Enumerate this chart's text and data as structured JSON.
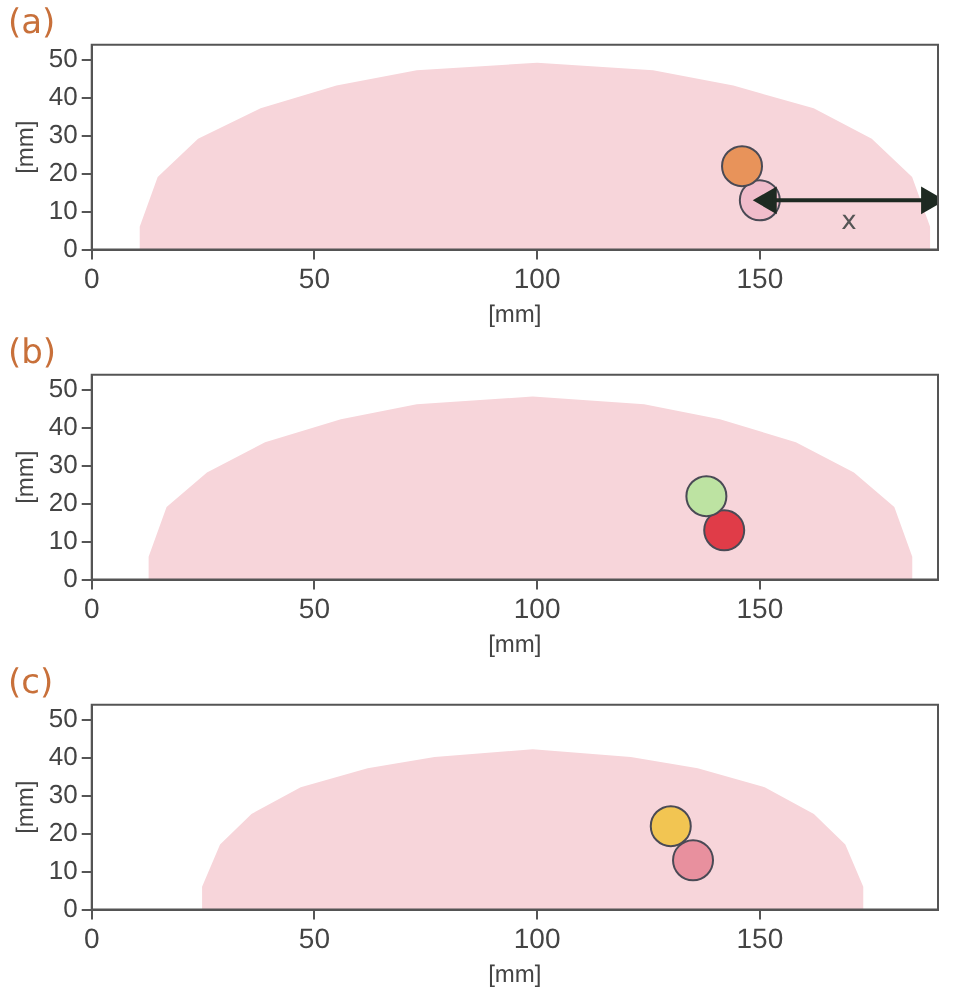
{
  "chart_data": [
    {
      "type": "scatter",
      "title": "(a)",
      "xlabel": "[mm]",
      "ylabel": "[mm]",
      "xlim": [
        0,
        190
      ],
      "xticks": [
        0,
        50,
        100,
        150
      ],
      "ylim": [
        0,
        54
      ],
      "yticks": [
        0,
        10,
        20,
        30,
        40,
        50
      ],
      "grid": false,
      "legend": false,
      "annotations": [
        "x"
      ],
      "series": [
        {
          "type": "area",
          "color": "#f7d5da",
          "x": [
            11,
            11,
            15,
            24,
            38,
            55,
            73,
            100,
            126,
            144,
            162,
            175,
            184,
            188,
            188
          ],
          "values": [
            0,
            6,
            19,
            29,
            37,
            43,
            47,
            49,
            47,
            43,
            37,
            29,
            19,
            6,
            0
          ]
        },
        {
          "type": "scatter",
          "marker": "circle",
          "color": "#e8935a",
          "x": [
            146
          ],
          "values": [
            22
          ]
        },
        {
          "type": "scatter",
          "marker": "circle",
          "color": "#f0bccb",
          "x": [
            150
          ],
          "values": [
            13
          ]
        },
        {
          "type": "line",
          "marker": "triangle",
          "color": "#1e2a22",
          "x": [
            152,
            188
          ],
          "values": [
            13,
            13
          ]
        }
      ]
    },
    {
      "type": "scatter",
      "title": "(b)",
      "xlabel": "[mm]",
      "ylabel": "[mm]",
      "xlim": [
        0,
        190
      ],
      "xticks": [
        0,
        50,
        100,
        150
      ],
      "ylim": [
        0,
        54
      ],
      "yticks": [
        0,
        10,
        20,
        30,
        40,
        50
      ],
      "grid": false,
      "legend": false,
      "series": [
        {
          "type": "area",
          "color": "#f7d5da",
          "x": [
            13,
            13,
            17,
            26,
            39,
            56,
            73,
            99,
            124,
            141,
            158,
            171,
            180,
            184,
            184
          ],
          "values": [
            0,
            6,
            19,
            28,
            36,
            42,
            46,
            48,
            46,
            42,
            36,
            28,
            19,
            6,
            0
          ]
        },
        {
          "type": "scatter",
          "marker": "circle",
          "color": "#bde3a2",
          "x": [
            138
          ],
          "values": [
            22
          ]
        },
        {
          "type": "scatter",
          "marker": "circle",
          "color": "#e03c48",
          "x": [
            142
          ],
          "values": [
            13
          ]
        }
      ]
    },
    {
      "type": "scatter",
      "title": "(c)",
      "xlabel": "[mm]",
      "ylabel": "[mm]",
      "xlim": [
        0,
        190
      ],
      "xticks": [
        0,
        50,
        100,
        150
      ],
      "ylim": [
        0,
        54
      ],
      "yticks": [
        0,
        10,
        20,
        30,
        40,
        50
      ],
      "grid": false,
      "legend": false,
      "series": [
        {
          "type": "area",
          "color": "#f7d5da",
          "x": [
            25,
            25,
            29,
            36,
            47,
            62,
            77,
            99,
            121,
            136,
            151,
            162,
            169,
            173,
            173
          ],
          "values": [
            0,
            6,
            17,
            25,
            32,
            37,
            40,
            42,
            40,
            37,
            32,
            25,
            17,
            6,
            0
          ]
        },
        {
          "type": "scatter",
          "marker": "circle",
          "color": "#f2c552",
          "x": [
            130
          ],
          "values": [
            22
          ]
        },
        {
          "type": "scatter",
          "marker": "circle",
          "color": "#e8909e",
          "x": [
            135
          ],
          "values": [
            13
          ]
        }
      ]
    }
  ]
}
